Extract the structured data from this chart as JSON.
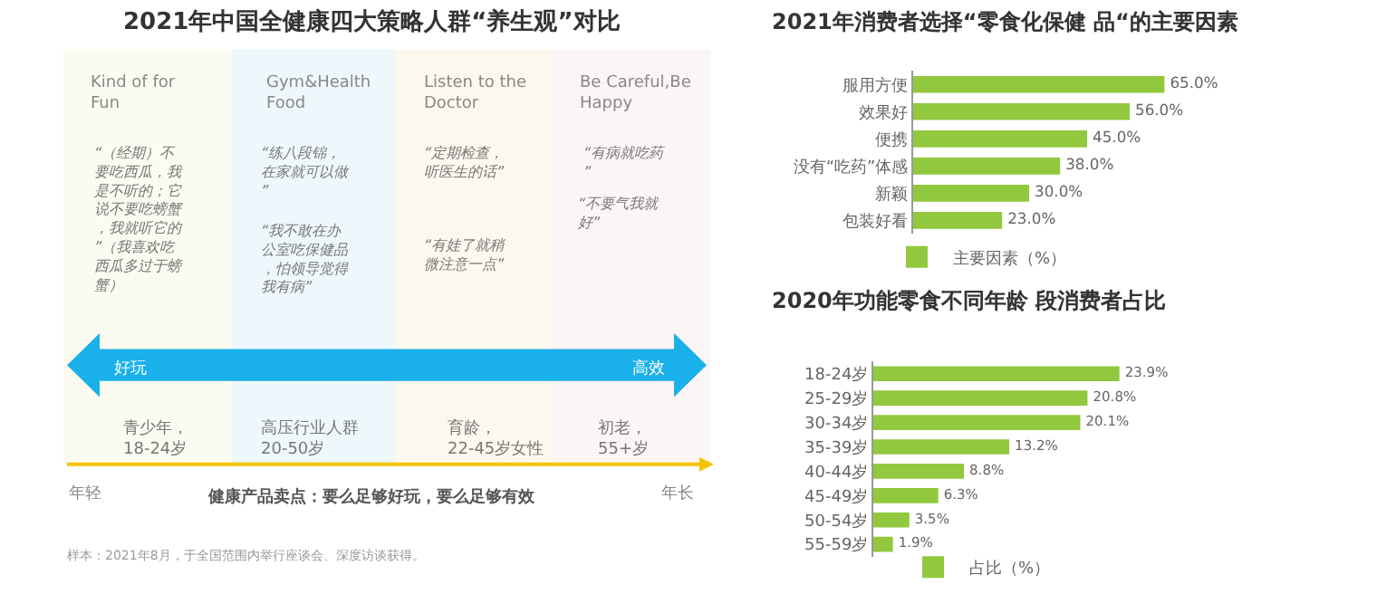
{
  "chart_data": [
    {
      "type": "other",
      "title": "2021年中国全健康四大策略人群“养生观”对比",
      "annotations": [
        "Kind of for\nFun",
        "Gym&Health\nFood",
        "Listen to the\nDoctor",
        "Be Careful,Be\nHappy",
        "“（经期）不要吃西瓜，我是不听的；它说不要吃螃蟹，我就听它的”（我喜欢吃西瓜多过于螃蟹）",
        "“练八段锦，在家就可以做”",
        "“我不敢在办公室吃保健品，怕领导觉得我有病”",
        "“定期检查，听医生的话”",
        "“有娃了就稍微注意一点”",
        "“有病就吃药”",
        "“不要气我就好”",
        "好玩",
        "高效",
        "青少年，\n18-24岁",
        "高压行业人群\n20-50岁",
        "育龄，\n22-45岁女性",
        "初老，\n55+岁",
        "年轻",
        "年长",
        "健康产品卖点：要么足够好玩，要么足够有效",
        "样本：2021年8月，于全国范围内举行座谈会、深度访谈获得。"
      ]
    },
    {
      "type": "bar",
      "orientation": "horizontal",
      "title": "2021年消费者选择“零食化保健 品“的主要因素",
      "categories": [
        "服用方便",
        "效果好",
        "便携",
        "没有“吃药”体感",
        "新颖",
        "包装好看"
      ],
      "series": [
        {
          "name": "主要因素（%）",
          "color": "#92c83e",
          "values": [
            65.0,
            56.0,
            45.0,
            38.0,
            30.0,
            23.0
          ],
          "value_labels": [
            "65.0%",
            "56.0%",
            "45.0%",
            "38.0%",
            "30.0%",
            "23.0%"
          ]
        }
      ],
      "legend": "bottom",
      "tick_labels": "y"
    },
    {
      "type": "bar",
      "orientation": "horizontal",
      "title": "2020年功能零食不同年龄 段消费者占比",
      "categories": [
        "18-24岁",
        "25-29岁",
        "30-34岁",
        "35-39岁",
        "40-44岁",
        "45-49岁",
        "50-54岁",
        "55-59岁"
      ],
      "series": [
        {
          "name": "占比（%）",
          "color": "#92c83e",
          "values": [
            23.9,
            20.8,
            20.1,
            13.2,
            8.8,
            6.3,
            3.5,
            1.9
          ],
          "value_labels": [
            "23.9%",
            "20.8%",
            "20.1%",
            "13.2%",
            "8.8%",
            "6.3%",
            "3.5%",
            "1.9%"
          ]
        }
      ],
      "legend": "bottom",
      "tick_labels": "y"
    }
  ]
}
